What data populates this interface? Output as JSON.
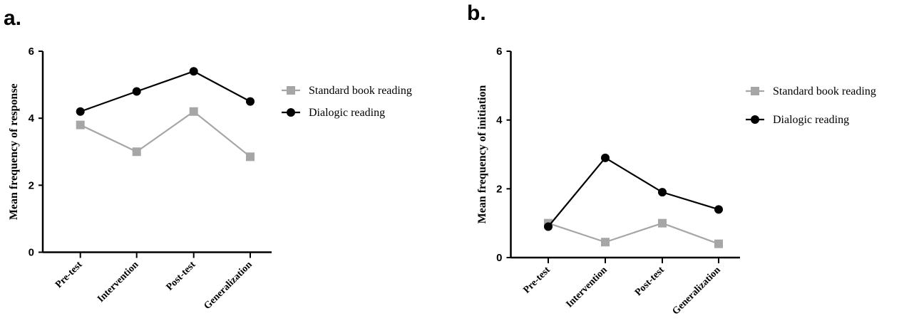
{
  "chart_data": [
    {
      "type": "line",
      "panel_label": "a.",
      "categories": [
        "Pre-test",
        "Intervention",
        "Post-test",
        "Generalization"
      ],
      "ylabel": "Mean frequency of response",
      "xlabel": "",
      "ylim": [
        0,
        6
      ],
      "yticks": [
        "0",
        "2",
        "4",
        "6"
      ],
      "legend_position": "right",
      "series": [
        {
          "name": "Standard book reading",
          "color": "#a6a6a6",
          "marker": "square",
          "values": [
            3.8,
            3.0,
            4.2,
            2.85
          ]
        },
        {
          "name": "Dialogic reading",
          "color": "#000000",
          "marker": "circle",
          "values": [
            4.2,
            4.8,
            5.4,
            4.5
          ]
        }
      ]
    },
    {
      "type": "line",
      "panel_label": "b.",
      "categories": [
        "Pre-test",
        "Intervention",
        "Post-test",
        "Generalization"
      ],
      "ylabel": "Mean frequency of initiation",
      "xlabel": "",
      "ylim": [
        0,
        6
      ],
      "yticks": [
        "0",
        "2",
        "4",
        "6"
      ],
      "legend_position": "right",
      "series": [
        {
          "name": "Standard book reading",
          "color": "#a6a6a6",
          "marker": "square",
          "values": [
            1.0,
            0.45,
            1.0,
            0.4
          ]
        },
        {
          "name": "Dialogic reading",
          "color": "#000000",
          "marker": "circle",
          "values": [
            0.9,
            2.9,
            1.9,
            1.4
          ]
        }
      ]
    }
  ]
}
